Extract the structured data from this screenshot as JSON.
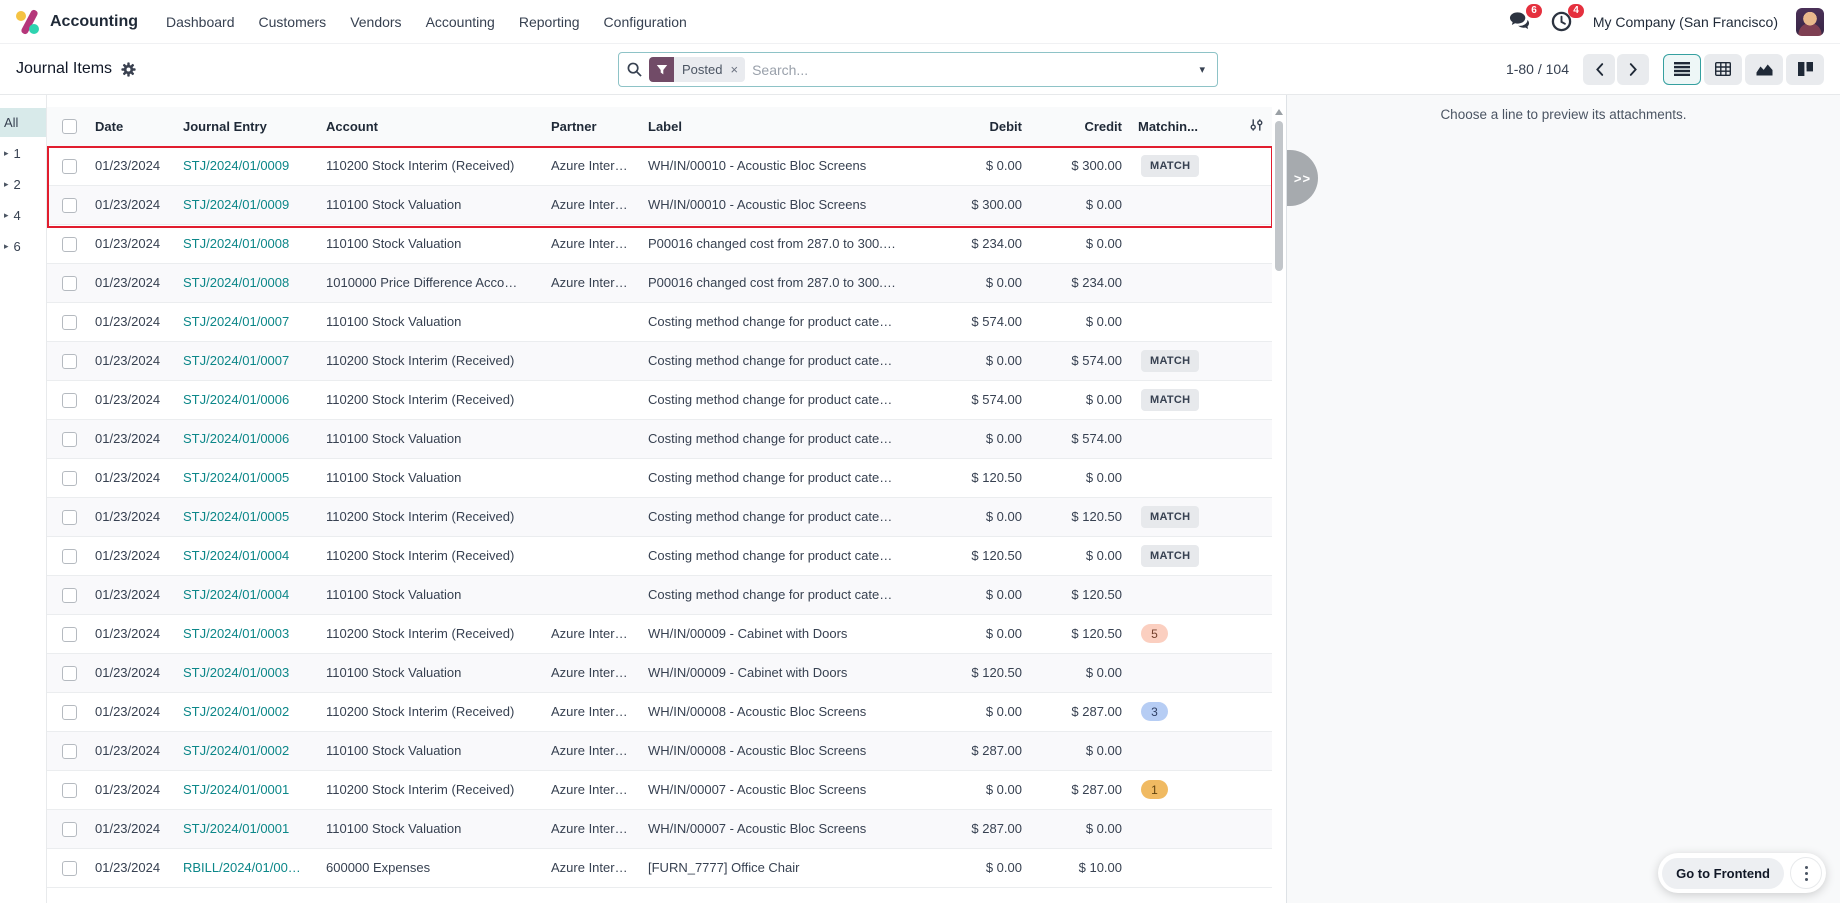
{
  "navbar": {
    "app_name": "Accounting",
    "menu_items": [
      "Dashboard",
      "Customers",
      "Vendors",
      "Accounting",
      "Reporting",
      "Configuration"
    ],
    "messages_badge": "6",
    "activities_badge": "4",
    "company": "My Company (San Francisco)"
  },
  "control_panel": {
    "title": "Journal Items",
    "search": {
      "facet_label": "Posted",
      "facet_remove": "×",
      "placeholder": "Search...",
      "caret": "▾"
    },
    "pager": {
      "text": "1-80 / 104"
    },
    "view_switcher": [
      {
        "name": "list",
        "active": true
      },
      {
        "name": "pivot",
        "active": false
      },
      {
        "name": "graph",
        "active": false
      },
      {
        "name": "kanban",
        "active": false
      }
    ]
  },
  "sidebar": {
    "items": [
      {
        "label": "All",
        "active": true,
        "expandable": false
      },
      {
        "label": "1",
        "active": false,
        "expandable": true
      },
      {
        "label": "2",
        "active": false,
        "expandable": true
      },
      {
        "label": "4",
        "active": false,
        "expandable": true
      },
      {
        "label": "6",
        "active": false,
        "expandable": true
      }
    ],
    "caret": "▸"
  },
  "table": {
    "columns": [
      "Date",
      "Journal Entry",
      "Account",
      "Partner",
      "Label",
      "Debit",
      "Credit",
      "Matchin..."
    ],
    "rows": [
      {
        "date": "01/23/2024",
        "entry": "STJ/2024/01/0009",
        "account": "110200 Stock Interim (Received)",
        "partner": "Azure Inter…",
        "label": "WH/IN/00010 - Acoustic Bloc Screens",
        "debit": "$ 0.00",
        "credit": "$ 300.00",
        "match": "MATCH",
        "badge": null
      },
      {
        "date": "01/23/2024",
        "entry": "STJ/2024/01/0009",
        "account": "110100 Stock Valuation",
        "partner": "Azure Inter…",
        "label": "WH/IN/00010 - Acoustic Bloc Screens",
        "debit": "$ 300.00",
        "credit": "$ 0.00",
        "match": "",
        "badge": null
      },
      {
        "date": "01/23/2024",
        "entry": "STJ/2024/01/0008",
        "account": "110100 Stock Valuation",
        "partner": "Azure Inter…",
        "label": "P00016 changed cost from 287.0 to 300.…",
        "debit": "$ 234.00",
        "credit": "$ 0.00",
        "match": "",
        "badge": null
      },
      {
        "date": "01/23/2024",
        "entry": "STJ/2024/01/0008",
        "account": "1010000 Price Difference Acco…",
        "partner": "Azure Inter…",
        "label": "P00016 changed cost from 287.0 to 300.…",
        "debit": "$ 0.00",
        "credit": "$ 234.00",
        "match": "",
        "badge": null
      },
      {
        "date": "01/23/2024",
        "entry": "STJ/2024/01/0007",
        "account": "110100 Stock Valuation",
        "partner": "",
        "label": "Costing method change for product cate…",
        "debit": "$ 574.00",
        "credit": "$ 0.00",
        "match": "",
        "badge": null
      },
      {
        "date": "01/23/2024",
        "entry": "STJ/2024/01/0007",
        "account": "110200 Stock Interim (Received)",
        "partner": "",
        "label": "Costing method change for product cate…",
        "debit": "$ 0.00",
        "credit": "$ 574.00",
        "match": "MATCH",
        "badge": null
      },
      {
        "date": "01/23/2024",
        "entry": "STJ/2024/01/0006",
        "account": "110200 Stock Interim (Received)",
        "partner": "",
        "label": "Costing method change for product cate…",
        "debit": "$ 574.00",
        "credit": "$ 0.00",
        "match": "MATCH",
        "badge": null
      },
      {
        "date": "01/23/2024",
        "entry": "STJ/2024/01/0006",
        "account": "110100 Stock Valuation",
        "partner": "",
        "label": "Costing method change for product cate…",
        "debit": "$ 0.00",
        "credit": "$ 574.00",
        "match": "",
        "badge": null
      },
      {
        "date": "01/23/2024",
        "entry": "STJ/2024/01/0005",
        "account": "110100 Stock Valuation",
        "partner": "",
        "label": "Costing method change for product cate…",
        "debit": "$ 120.50",
        "credit": "$ 0.00",
        "match": "",
        "badge": null
      },
      {
        "date": "01/23/2024",
        "entry": "STJ/2024/01/0005",
        "account": "110200 Stock Interim (Received)",
        "partner": "",
        "label": "Costing method change for product cate…",
        "debit": "$ 0.00",
        "credit": "$ 120.50",
        "match": "MATCH",
        "badge": null
      },
      {
        "date": "01/23/2024",
        "entry": "STJ/2024/01/0004",
        "account": "110200 Stock Interim (Received)",
        "partner": "",
        "label": "Costing method change for product cate…",
        "debit": "$ 120.50",
        "credit": "$ 0.00",
        "match": "MATCH",
        "badge": null
      },
      {
        "date": "01/23/2024",
        "entry": "STJ/2024/01/0004",
        "account": "110100 Stock Valuation",
        "partner": "",
        "label": "Costing method change for product cate…",
        "debit": "$ 0.00",
        "credit": "$ 120.50",
        "match": "",
        "badge": null
      },
      {
        "date": "01/23/2024",
        "entry": "STJ/2024/01/0003",
        "account": "110200 Stock Interim (Received)",
        "partner": "Azure Inter…",
        "label": "WH/IN/00009 - Cabinet with Doors",
        "debit": "$ 0.00",
        "credit": "$ 120.50",
        "match": "",
        "badge": {
          "text": "5",
          "bg": "#fbcfc0",
          "fg": "#74402c"
        }
      },
      {
        "date": "01/23/2024",
        "entry": "STJ/2024/01/0003",
        "account": "110100 Stock Valuation",
        "partner": "Azure Inter…",
        "label": "WH/IN/00009 - Cabinet with Doors",
        "debit": "$ 120.50",
        "credit": "$ 0.00",
        "match": "",
        "badge": null
      },
      {
        "date": "01/23/2024",
        "entry": "STJ/2024/01/0002",
        "account": "110200 Stock Interim (Received)",
        "partner": "Azure Inter…",
        "label": "WH/IN/00008 - Acoustic Bloc Screens",
        "debit": "$ 0.00",
        "credit": "$ 287.00",
        "match": "",
        "badge": {
          "text": "3",
          "bg": "#b6cdf4",
          "fg": "#2f3f63"
        }
      },
      {
        "date": "01/23/2024",
        "entry": "STJ/2024/01/0002",
        "account": "110100 Stock Valuation",
        "partner": "Azure Inter…",
        "label": "WH/IN/00008 - Acoustic Bloc Screens",
        "debit": "$ 287.00",
        "credit": "$ 0.00",
        "match": "",
        "badge": null
      },
      {
        "date": "01/23/2024",
        "entry": "STJ/2024/01/0001",
        "account": "110200 Stock Interim (Received)",
        "partner": "Azure Inter…",
        "label": "WH/IN/00007 - Acoustic Bloc Screens",
        "debit": "$ 0.00",
        "credit": "$ 287.00",
        "match": "",
        "badge": {
          "text": "1",
          "bg": "#f0ba62",
          "fg": "#5f430f"
        }
      },
      {
        "date": "01/23/2024",
        "entry": "STJ/2024/01/0001",
        "account": "110100 Stock Valuation",
        "partner": "Azure Inter…",
        "label": "WH/IN/00007 - Acoustic Bloc Screens",
        "debit": "$ 287.00",
        "credit": "$ 0.00",
        "match": "",
        "badge": null
      },
      {
        "date": "01/23/2024",
        "entry": "RBILL/2024/01/00…",
        "account": "600000 Expenses",
        "partner": "Azure Inter…",
        "label": "[FURN_7777] Office Chair",
        "debit": "$ 0.00",
        "credit": "$ 10.00",
        "match": "",
        "badge": null
      }
    ]
  },
  "annotation": {
    "highlighted_rows": [
      1,
      2
    ]
  },
  "attachment_panel": {
    "message": "Choose a line to preview its attachments.",
    "toggle_label": ">>"
  },
  "frontend": {
    "button_label": "Go to Frontend"
  },
  "colors": {
    "accent_teal": "#0c8789",
    "brand_purple": "#714b67",
    "notification_red": "#e5303e",
    "highlight_red": "#e11d2e",
    "active_view_border": "#35a0a0"
  }
}
